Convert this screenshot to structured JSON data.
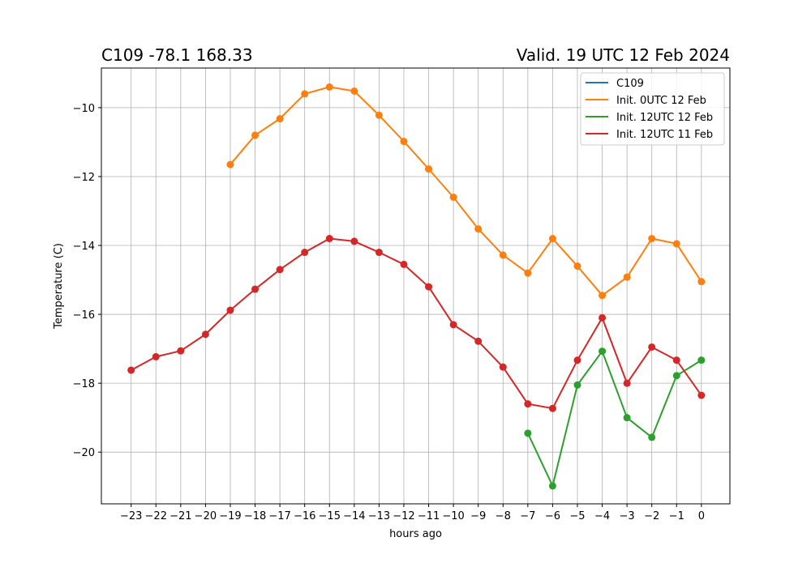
{
  "chart_data": {
    "type": "line",
    "title_left": "C109 -78.1 168.33",
    "title_right": "Valid. 19 UTC 12 Feb 2024",
    "xlabel": "hours ago",
    "ylabel": "Temperature (C)",
    "xlim": [
      -24.2,
      1.15
    ],
    "ylim": [
      -21.5,
      -8.85
    ],
    "xticks": [
      -23,
      -22,
      -21,
      -20,
      -19,
      -18,
      -17,
      -16,
      -15,
      -14,
      -13,
      -12,
      -11,
      -10,
      -9,
      -8,
      -7,
      -6,
      -5,
      -4,
      -3,
      -2,
      -1,
      0
    ],
    "yticks": [
      -20,
      -18,
      -16,
      -14,
      -12,
      -10
    ],
    "grid": true,
    "legend_position": "top-right",
    "series": [
      {
        "name": "C109",
        "color": "#1f77b4",
        "x": [],
        "y": []
      },
      {
        "name": "Init. 0UTC 12 Feb",
        "color": "#ff7f0e",
        "x": [
          -19,
          -18,
          -17,
          -16,
          -15,
          -14,
          -13,
          -12,
          -11,
          -10,
          -9,
          -8,
          -7,
          -6,
          -5,
          -4,
          -3,
          -2,
          -1,
          0
        ],
        "y": [
          -11.65,
          -10.8,
          -10.32,
          -9.6,
          -9.4,
          -9.52,
          -10.22,
          -10.98,
          -11.78,
          -12.6,
          -13.52,
          -14.28,
          -14.8,
          -13.8,
          -14.6,
          -15.45,
          -14.92,
          -13.8,
          -13.95,
          -15.05
        ]
      },
      {
        "name": "Init. 12UTC 12 Feb",
        "color": "#2ca02c",
        "x": [
          -7,
          -6,
          -5,
          -4,
          -3,
          -2,
          -1,
          0
        ],
        "y": [
          -19.45,
          -20.98,
          -18.05,
          -17.07,
          -19.0,
          -19.57,
          -17.78,
          -17.33
        ]
      },
      {
        "name": "Init. 12UTC 11 Feb",
        "color": "#d62728",
        "x": [
          -23,
          -22,
          -21,
          -20,
          -19,
          -18,
          -17,
          -16,
          -15,
          -14,
          -13,
          -12,
          -11,
          -10,
          -9,
          -8,
          -7,
          -6,
          -5,
          -4,
          -3,
          -2,
          -1,
          0
        ],
        "y": [
          -17.62,
          -17.23,
          -17.06,
          -16.58,
          -15.88,
          -15.27,
          -14.7,
          -14.2,
          -13.8,
          -13.88,
          -14.2,
          -14.55,
          -15.2,
          -16.3,
          -16.78,
          -17.53,
          -18.6,
          -18.73,
          -17.33,
          -16.1,
          -18.0,
          -16.95,
          -17.33,
          -18.35
        ]
      }
    ]
  }
}
